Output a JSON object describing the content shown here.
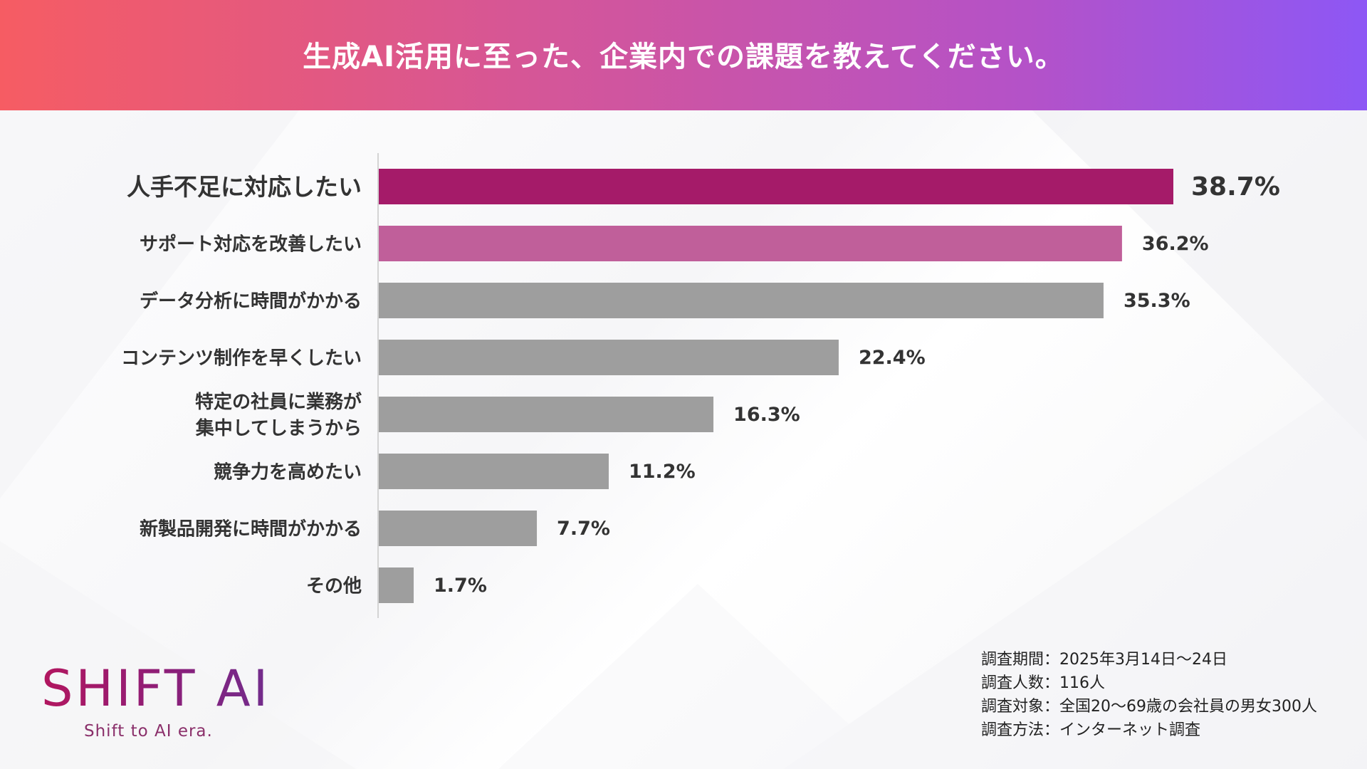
{
  "header": {
    "title": "生成AI活用に至った、企業内での課題を教えてください。"
  },
  "colors": {
    "highlight_primary": "#a51b69",
    "highlight_secondary": "#c05f9a",
    "bar_default": "#9e9e9e",
    "label_default": "#333333"
  },
  "chart_data": {
    "type": "bar",
    "orientation": "horizontal",
    "title": "生成AI活用に至った、企業内での課題を教えてください。",
    "unit": "%",
    "xlim": [
      0,
      38.7
    ],
    "categories": [
      [
        "人手不足に対応したい"
      ],
      [
        "サポート対応を改善したい"
      ],
      [
        "データ分析に時間がかかる"
      ],
      [
        "コンテンツ制作を早くしたい"
      ],
      [
        "特定の社員に業務が",
        "集中してしまうから"
      ],
      [
        "競争力を高めたい"
      ],
      [
        "新製品開発に時間がかかる"
      ],
      [
        "その他"
      ]
    ],
    "values": [
      38.7,
      36.2,
      35.3,
      22.4,
      16.3,
      11.2,
      7.7,
      1.7
    ],
    "value_labels": [
      "38.7%",
      "36.2%",
      "35.3%",
      "22.4%",
      "16.3%",
      "11.2%",
      "7.7%",
      "1.7%"
    ],
    "highlight": [
      "primary",
      "secondary",
      "none",
      "none",
      "none",
      "none",
      "none",
      "none"
    ]
  },
  "logo": {
    "name": "SHIFT AI",
    "tagline": "Shift to AI era."
  },
  "survey_info": [
    "調査期間：2025年3月14日〜24日",
    "調査人数：116人",
    "調査対象：全国20〜69歳の会社員の男女300人",
    "調査方法：インターネット調査"
  ]
}
